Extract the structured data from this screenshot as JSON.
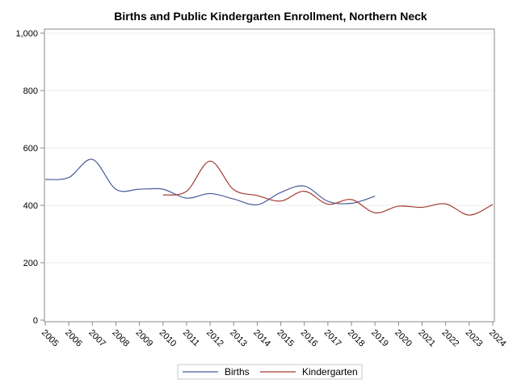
{
  "chart_data": {
    "type": "line",
    "title": "Births and Public Kindergarten Enrollment, Northern Neck",
    "xlabel": "",
    "ylabel": "",
    "x": [
      "2005",
      "2006",
      "2007",
      "2008",
      "2009",
      "2010",
      "2011",
      "2012",
      "2013",
      "2014",
      "2015",
      "2016",
      "2017",
      "2018",
      "2019",
      "2020",
      "2021",
      "2022",
      "2023",
      "2024"
    ],
    "y_ticks": [
      "0",
      "200",
      "400",
      "600",
      "800",
      "1,000"
    ],
    "ylim": [
      0,
      1000
    ],
    "grid": true,
    "legend_position": "bottom",
    "series": [
      {
        "name": "Births",
        "color": "#4a5a9a",
        "x": [
          "2005",
          "2006",
          "2007",
          "2008",
          "2009",
          "2010",
          "2011",
          "2012",
          "2013",
          "2014",
          "2015",
          "2016",
          "2017",
          "2018",
          "2019"
        ],
        "values": [
          490,
          497,
          560,
          456,
          456,
          456,
          425,
          441,
          422,
          402,
          445,
          467,
          414,
          407,
          432
        ]
      },
      {
        "name": "Kindergarten",
        "color": "#a33b32",
        "x": [
          "2010",
          "2011",
          "2012",
          "2013",
          "2014",
          "2015",
          "2016",
          "2017",
          "2018",
          "2019",
          "2020",
          "2021",
          "2022",
          "2023",
          "2024"
        ],
        "values": [
          436,
          449,
          554,
          455,
          434,
          415,
          449,
          404,
          420,
          374,
          397,
          393,
          405,
          366,
          403
        ]
      }
    ]
  }
}
